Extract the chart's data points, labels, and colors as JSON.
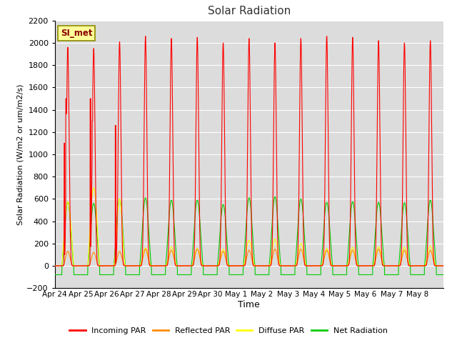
{
  "title": "Solar Radiation",
  "xlabel": "Time",
  "ylabel": "Solar Radiation (W/m2 or um/m2/s)",
  "ylim": [
    -200,
    2200
  ],
  "yticks": [
    -200,
    0,
    200,
    400,
    600,
    800,
    1000,
    1200,
    1400,
    1600,
    1800,
    2000,
    2200
  ],
  "x_labels": [
    "Apr 24",
    "Apr 25",
    "Apr 26",
    "Apr 27",
    "Apr 28",
    "Apr 29",
    "Apr 30",
    "May 1",
    "May 2",
    "May 3",
    "May 4",
    "May 5",
    "May 6",
    "May 7",
    "May 8"
  ],
  "annotation": "SI_met",
  "annotation_color": "#8B0000",
  "annotation_bg": "#FFFF99",
  "annotation_border": "#8B8B00",
  "colors": {
    "incoming": "#FF0000",
    "reflected": "#FF8C00",
    "diffuse": "#FFFF00",
    "net": "#00CC00"
  },
  "legend_labels": [
    "Incoming PAR",
    "Reflected PAR",
    "Diffuse PAR",
    "Net Radiation"
  ],
  "bg_color": "#DCDCDC",
  "grid_color": "#FFFFFF",
  "num_days": 15,
  "night_net": -80
}
